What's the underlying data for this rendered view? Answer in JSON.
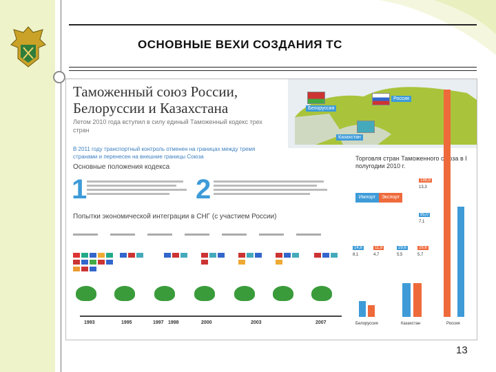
{
  "slide": {
    "title": "ОСНОВНЫЕ ВЕХИ СОЗДАНИЯ ТС",
    "page_number": "13"
  },
  "infographic": {
    "title_line1": "Таможенный союз России,",
    "title_line2": "Белоруссии и Казахстана",
    "subtitle": "Летом 2010 года вступил в силу единый Таможенный кодекс трех стран",
    "highlight": "В 2011 году транспортный контроль отменен на границах между тремя странами и перенесен на внешние границы Союза",
    "section_code": "Основные положения кодекса",
    "point1_number": "1",
    "point2_number": "2",
    "section_integration": "Попытки экономической интеграции в СНГ (с участием России)",
    "map_labels": {
      "belarus": "Белоруссия",
      "russia": "Россия",
      "kazakhstan": "Казахстан"
    },
    "trade": {
      "title": "Торговля стран Таможенного союза в I полугодии 2010 г.",
      "legend_import": "Импорт",
      "legend_export": "Экспорт",
      "countries": [
        "Белоруссия",
        "Казахстан",
        "Россия"
      ],
      "russia_values": [
        "198,8",
        "13,3",
        "95,0",
        "7,1"
      ],
      "belarus_values": [
        "14,8",
        "8,1"
      ],
      "belarus_values2": [
        "11,8",
        "4,7"
      ],
      "kazakhstan_values": [
        "29,6",
        "5,5"
      ],
      "kazakhstan_values2": [
        "29,6",
        "5,7"
      ]
    },
    "timeline_years": [
      "1993",
      "1995",
      "1997",
      "1998",
      "2000",
      "2003",
      "2007"
    ]
  },
  "colors": {
    "accent_blue": "#3e9bd8",
    "accent_orange": "#ef6a3b",
    "left_band": "#eef3c9"
  }
}
